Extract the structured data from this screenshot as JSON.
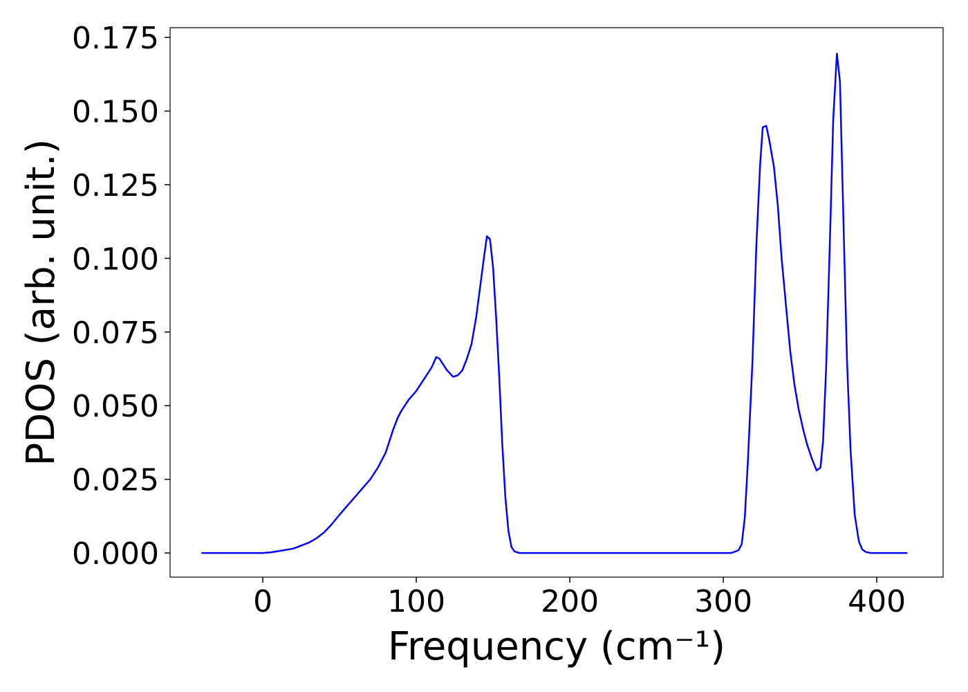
{
  "chart_data": {
    "type": "line",
    "xlabel": "Frequency (cm⁻¹)",
    "ylabel": "PDOS (arb. unit.)",
    "x": [
      -40,
      0,
      5,
      10,
      20,
      30,
      35,
      40,
      45,
      50,
      55,
      60,
      65,
      70,
      75,
      80,
      85,
      88,
      90,
      95,
      100,
      105,
      110,
      113,
      115,
      120,
      124,
      127,
      130,
      133,
      136,
      139,
      142,
      144,
      146,
      148,
      150,
      152,
      154,
      156,
      158,
      160,
      162,
      164,
      167,
      305,
      308,
      310,
      312,
      314,
      316,
      319,
      321.5,
      324,
      325.7,
      328,
      330,
      333,
      335.5,
      338,
      341,
      343.7,
      346.4,
      349,
      352,
      354.5,
      357.7,
      360.8,
      363.3,
      365,
      367,
      369.4,
      371.6,
      374,
      376,
      378.4,
      380.6,
      382.9,
      385.6,
      388.3,
      390.5,
      393,
      396,
      420
    ],
    "series": [
      {
        "color": "#0000ff",
        "values": [
          0,
          0,
          0.0002,
          0.0006,
          0.0015,
          0.0035,
          0.005,
          0.007,
          0.0098,
          0.013,
          0.016,
          0.019,
          0.022,
          0.025,
          0.029,
          0.034,
          0.042,
          0.046,
          0.048,
          0.052,
          0.055,
          0.059,
          0.063,
          0.0665,
          0.066,
          0.062,
          0.0598,
          0.0603,
          0.062,
          0.066,
          0.071,
          0.08,
          0.092,
          0.1,
          0.1075,
          0.1065,
          0.097,
          0.08,
          0.06,
          0.037,
          0.019,
          0.0075,
          0.002,
          0.0005,
          0,
          0,
          0.0005,
          0.001,
          0.003,
          0.012,
          0.031,
          0.065,
          0.104,
          0.132,
          0.1445,
          0.145,
          0.14,
          0.131,
          0.118,
          0.1,
          0.083,
          0.068,
          0.057,
          0.049,
          0.042,
          0.037,
          0.032,
          0.028,
          0.029,
          0.038,
          0.063,
          0.105,
          0.147,
          0.1695,
          0.16,
          0.11,
          0.065,
          0.035,
          0.013,
          0.004,
          0.0012,
          0.0003,
          0,
          0
        ]
      }
    ],
    "xlim": [
      -60.4,
      443.2
    ],
    "ylim": [
      -0.0082,
      0.1783
    ],
    "xticks": [
      0,
      100,
      200,
      300,
      400
    ],
    "yticks": [
      {
        "value": 0,
        "label": "0.000"
      },
      {
        "value": 0.025,
        "label": "0.025"
      },
      {
        "value": 0.05,
        "label": "0.050"
      },
      {
        "value": 0.075,
        "label": "0.075"
      },
      {
        "value": 0.1,
        "label": "0.100"
      },
      {
        "value": 0.125,
        "label": "0.125"
      },
      {
        "value": 0.15,
        "label": "0.150"
      },
      {
        "value": 0.175,
        "label": "0.175"
      }
    ],
    "grid": false
  }
}
